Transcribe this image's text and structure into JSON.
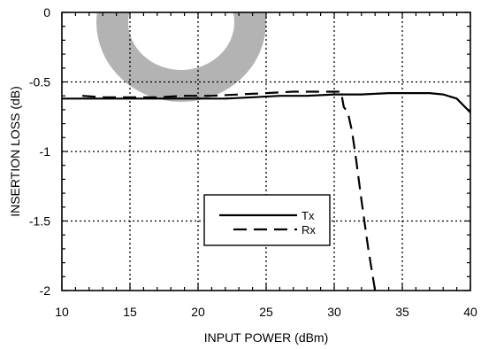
{
  "chart_data": {
    "type": "line",
    "title": "",
    "xlabel": "INPUT POWER (dBm)",
    "ylabel": "INSERTION LOSS (dB)",
    "xlim": [
      10,
      40
    ],
    "ylim": [
      -2,
      0
    ],
    "xticks": [
      10,
      15,
      20,
      25,
      30,
      35,
      40
    ],
    "yticks": [
      0,
      -0.5,
      -1,
      -1.5,
      -2
    ],
    "xtick_labels": [
      "10",
      "15",
      "20",
      "25",
      "30",
      "35",
      "40"
    ],
    "ytick_labels": [
      "0",
      "-0.5",
      "-1",
      "-1.5",
      "-2"
    ],
    "grid": true,
    "legend_position": "center-right",
    "series": [
      {
        "name": "Tx",
        "style": "solid",
        "color": "#000000",
        "x": [
          10,
          12,
          14,
          16,
          18,
          20,
          22,
          24,
          26,
          28,
          30,
          32,
          34,
          35,
          36,
          37,
          38,
          39,
          40
        ],
        "y": [
          -0.62,
          -0.62,
          -0.62,
          -0.62,
          -0.62,
          -0.62,
          -0.62,
          -0.61,
          -0.6,
          -0.6,
          -0.59,
          -0.59,
          -0.58,
          -0.58,
          -0.58,
          -0.58,
          -0.59,
          -0.62,
          -0.72
        ]
      },
      {
        "name": "Rx",
        "style": "dashed",
        "color": "#000000",
        "x": [
          11.5,
          13,
          15,
          17,
          19,
          21,
          23,
          25,
          27,
          29,
          30.5,
          30.7,
          31,
          31.3,
          31.6,
          32,
          32.5,
          33
        ],
        "y": [
          -0.6,
          -0.61,
          -0.61,
          -0.61,
          -0.6,
          -0.6,
          -0.59,
          -0.58,
          -0.57,
          -0.57,
          -0.57,
          -0.68,
          -0.72,
          -0.85,
          -1.05,
          -1.35,
          -1.7,
          -2.0
        ]
      }
    ],
    "watermark": {
      "shape": "ring",
      "color": "#b3b3b3"
    }
  }
}
